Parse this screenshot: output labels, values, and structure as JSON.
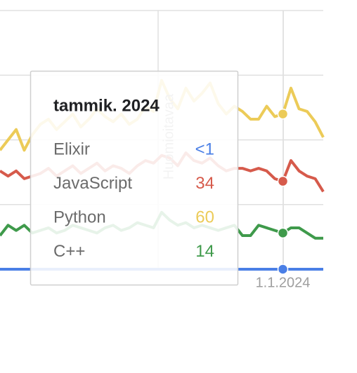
{
  "chart_data": {
    "type": "line",
    "categories": [
      null,
      null,
      null,
      null,
      null,
      null,
      null,
      null,
      null,
      null,
      null,
      null,
      null,
      null,
      null,
      null,
      null,
      null,
      null,
      null,
      null,
      null,
      null,
      null,
      null,
      null,
      null,
      null,
      null,
      null,
      null,
      null,
      null,
      null,
      null,
      "1.1.2024",
      null,
      null,
      null,
      null,
      null
    ],
    "series": [
      {
        "name": "Elixir",
        "color": "#4a7fe6",
        "values": [
          0,
          0,
          0,
          0,
          0,
          0,
          0,
          0,
          0,
          0,
          0,
          0,
          0,
          0,
          0,
          0,
          0,
          0,
          0,
          0,
          0,
          0,
          0,
          0,
          0,
          0,
          0,
          0,
          0,
          0,
          0,
          0,
          0,
          0,
          0,
          0,
          0,
          0,
          0,
          0,
          0
        ],
        "value_labels": [
          null,
          null,
          null,
          null,
          null,
          null,
          null,
          null,
          null,
          null,
          null,
          null,
          null,
          null,
          null,
          null,
          null,
          null,
          null,
          null,
          null,
          null,
          null,
          null,
          null,
          null,
          null,
          null,
          null,
          null,
          null,
          null,
          null,
          null,
          null,
          "<1",
          null,
          null,
          null,
          null,
          null
        ]
      },
      {
        "name": "JavaScript",
        "color": "#d65a4b",
        "values": [
          38,
          36,
          38,
          35,
          36,
          37,
          39,
          36,
          38,
          40,
          37,
          39,
          41,
          38,
          40,
          39,
          37,
          40,
          42,
          41,
          44,
          43,
          40,
          45,
          42,
          41,
          43,
          40,
          38,
          39,
          39,
          38,
          39,
          38,
          35,
          34,
          42,
          38,
          36,
          35,
          30
        ]
      },
      {
        "name": "Python",
        "color": "#eccb58",
        "values": [
          46,
          50,
          54,
          46,
          52,
          56,
          58,
          54,
          57,
          60,
          55,
          58,
          62,
          59,
          57,
          60,
          56,
          58,
          63,
          61,
          73,
          66,
          62,
          70,
          65,
          68,
          72,
          64,
          60,
          63,
          61,
          58,
          58,
          63,
          59,
          60,
          70,
          62,
          61,
          57,
          51
        ]
      },
      {
        "name": "C++",
        "color": "#3f9a4b",
        "values": [
          13,
          17,
          15,
          17,
          14,
          15,
          16,
          14,
          15,
          17,
          16,
          15,
          14,
          16,
          17,
          15,
          16,
          18,
          17,
          16,
          22,
          19,
          17,
          18,
          16,
          17,
          16,
          15,
          16,
          17,
          13,
          13,
          17,
          16,
          15,
          14,
          16,
          16,
          14,
          12,
          12
        ]
      }
    ],
    "ylim": [
      0,
      100
    ],
    "yticks": [
      0,
      25,
      50,
      75,
      100
    ],
    "grid": true,
    "annotation": "Huomioitavaa",
    "tooltip_title": "tammik. 2024"
  }
}
